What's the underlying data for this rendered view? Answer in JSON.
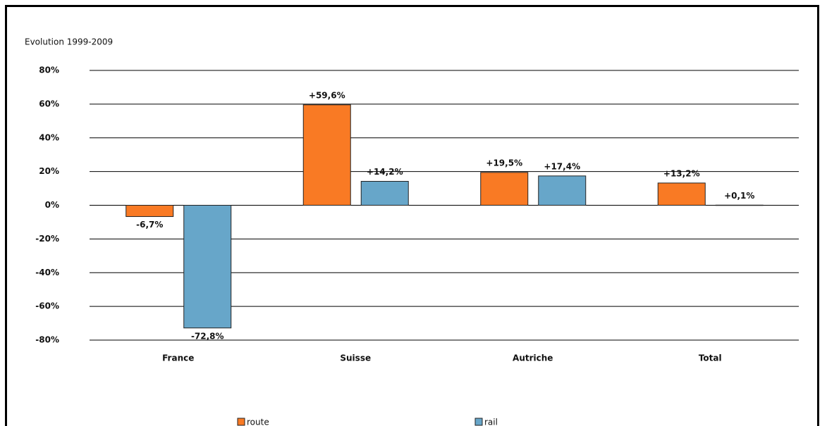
{
  "chart_data": {
    "type": "bar",
    "y_label": "Evolution 1999-2009",
    "categories": [
      "France",
      "Suisse",
      "Autriche",
      "Total"
    ],
    "series": [
      {
        "name": "route",
        "color": "#f97a24",
        "values": [
          -6.7,
          59.6,
          19.5,
          13.2
        ],
        "value_labels": [
          "-6,7%",
          "+59,6%",
          "+19,5%",
          "+13,2%"
        ]
      },
      {
        "name": "rail",
        "color": "#67a6c9",
        "values": [
          -72.8,
          14.2,
          17.4,
          0.1
        ],
        "value_labels": [
          "-72,8%",
          "+14,2%",
          "+17,4%",
          "+0,1%"
        ]
      }
    ],
    "ylim": [
      -80,
      80
    ],
    "yticks": [
      {
        "value": -80,
        "label": "-80%"
      },
      {
        "value": -60,
        "label": "-60%"
      },
      {
        "value": -40,
        "label": "-40%"
      },
      {
        "value": -20,
        "label": "-20%"
      },
      {
        "value": 0,
        "label": "0%"
      },
      {
        "value": 20,
        "label": "20%"
      },
      {
        "value": 40,
        "label": "40%"
      },
      {
        "value": 60,
        "label": "60%"
      },
      {
        "value": 80,
        "label": "80%"
      }
    ],
    "grid": true
  }
}
